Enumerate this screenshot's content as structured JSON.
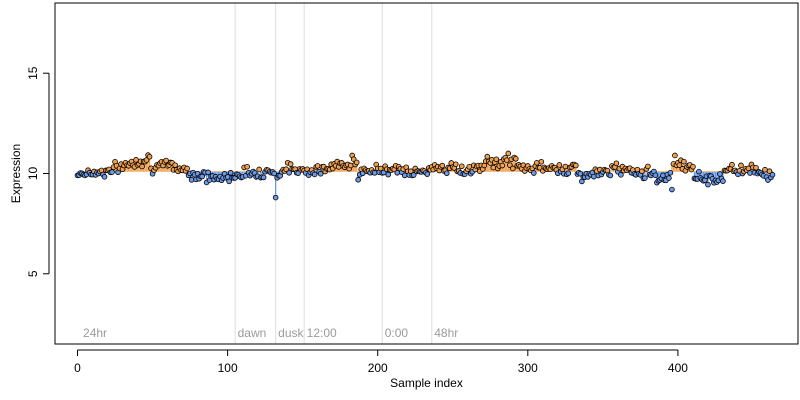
{
  "chart_data": {
    "type": "scatter",
    "title": "",
    "xlabel": "Sample index",
    "ylabel": "Expression",
    "xlim": [
      -15,
      480
    ],
    "ylim": [
      1.5,
      18.5
    ],
    "baseline": 10.1,
    "x_ticks": [
      0,
      100,
      200,
      300,
      400
    ],
    "y_ticks": [
      5,
      10,
      15
    ],
    "n_points": 464,
    "phase_lines": [
      105,
      132,
      151,
      203,
      236
    ],
    "phase_labels": [
      {
        "x": 3,
        "text": "24hr"
      },
      {
        "x": 106,
        "text": "dawn"
      },
      {
        "x": 133,
        "text": "dusk"
      },
      {
        "x": 152,
        "text": "12:00"
      },
      {
        "x": 204,
        "text": "0:00"
      },
      {
        "x": 237,
        "text": "48hr"
      }
    ],
    "colors": {
      "above": "#f0a050",
      "below": "#6b9ae8",
      "point_stroke": "#000000",
      "phase_line": "#dddddd"
    },
    "segments": [
      {
        "x_start": 0,
        "x_end": 20,
        "start": 10.0,
        "end": 10.1
      },
      {
        "x_start": 20,
        "x_end": 35,
        "start": 10.1,
        "end": 10.5
      },
      {
        "x_start": 35,
        "x_end": 48,
        "start": 10.5,
        "end": 10.8
      },
      {
        "x_start": 48,
        "x_end": 62,
        "start": 10.3,
        "end": 10.4
      },
      {
        "x_start": 62,
        "x_end": 75,
        "start": 10.4,
        "end": 10.1
      },
      {
        "x_start": 75,
        "x_end": 90,
        "start": 10.0,
        "end": 9.8
      },
      {
        "x_start": 90,
        "x_end": 105,
        "start": 9.7,
        "end": 9.9
      },
      {
        "x_start": 105,
        "x_end": 131,
        "start": 10.0,
        "end": 10.1
      },
      {
        "x_start": 131,
        "x_end": 135,
        "start": 9.6,
        "end": 10.1
      },
      {
        "x_start": 135,
        "x_end": 160,
        "start": 10.2,
        "end": 10.2
      },
      {
        "x_start": 160,
        "x_end": 175,
        "start": 10.1,
        "end": 10.4
      },
      {
        "x_start": 175,
        "x_end": 186,
        "start": 10.6,
        "end": 10.5
      },
      {
        "x_start": 186,
        "x_end": 200,
        "start": 9.9,
        "end": 10.2
      },
      {
        "x_start": 200,
        "x_end": 215,
        "start": 10.2,
        "end": 10.3
      },
      {
        "x_start": 215,
        "x_end": 235,
        "start": 10.0,
        "end": 10.1
      },
      {
        "x_start": 235,
        "x_end": 255,
        "start": 10.4,
        "end": 10.2
      },
      {
        "x_start": 255,
        "x_end": 270,
        "start": 10.1,
        "end": 10.3
      },
      {
        "x_start": 270,
        "x_end": 292,
        "start": 10.5,
        "end": 10.6
      },
      {
        "x_start": 292,
        "x_end": 310,
        "start": 10.3,
        "end": 10.3
      },
      {
        "x_start": 310,
        "x_end": 332,
        "start": 10.2,
        "end": 10.3
      },
      {
        "x_start": 332,
        "x_end": 350,
        "start": 9.9,
        "end": 10.0
      },
      {
        "x_start": 350,
        "x_end": 370,
        "start": 10.1,
        "end": 10.3
      },
      {
        "x_start": 370,
        "x_end": 385,
        "start": 10.1,
        "end": 10.0
      },
      {
        "x_start": 385,
        "x_end": 395,
        "start": 9.7,
        "end": 9.9
      },
      {
        "x_start": 395,
        "x_end": 410,
        "start": 10.5,
        "end": 10.4
      },
      {
        "x_start": 410,
        "x_end": 430,
        "start": 9.8,
        "end": 9.7
      },
      {
        "x_start": 430,
        "x_end": 448,
        "start": 10.2,
        "end": 10.2
      },
      {
        "x_start": 448,
        "x_end": 463,
        "start": 10.3,
        "end": 9.9
      }
    ],
    "noise_amplitude": 0.28,
    "outliers": [
      {
        "x": 132,
        "y": 8.8
      },
      {
        "x": 287,
        "y": 11.0
      },
      {
        "x": 183,
        "y": 10.9
      },
      {
        "x": 396,
        "y": 9.2
      },
      {
        "x": 398,
        "y": 10.9
      }
    ]
  }
}
